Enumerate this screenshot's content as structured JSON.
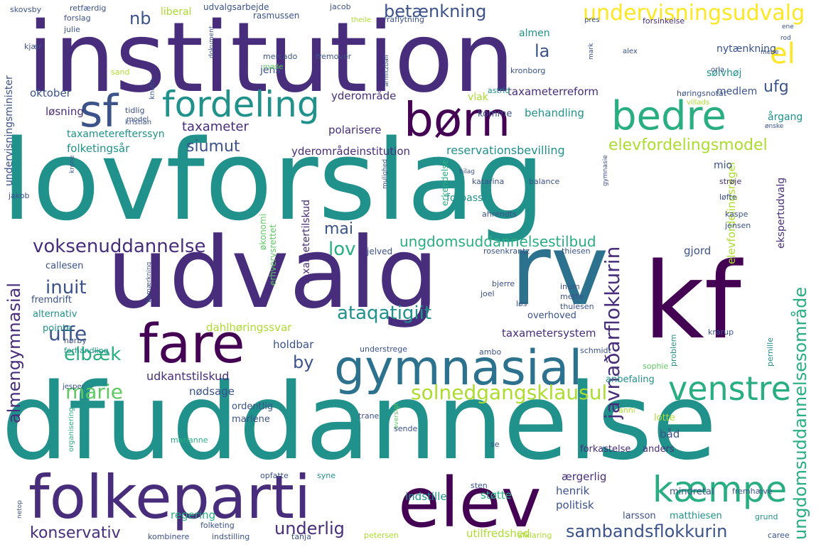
{
  "words": {
    "institution": "institution",
    "lovforslag": "lovforslag",
    "udvalg": "udvalg",
    "rv": "rv",
    "kf": "kf",
    "dfuddannelse": "dfuddannelse",
    "folkeparti": "folkeparti",
    "elev": "elev",
    "fare": "fare",
    "gymnasial": "gymnasial",
    "sf": "sf",
    "fordeling": "fordeling",
    "born": "børn",
    "bedre": "bedre",
    "el": "el",
    "kaempe": "kæmpe",
    "venstre": "venstre",
    "undervisningsudvalg": "undervisningsudvalg",
    "betaenkning": "betænkning",
    "elevfordelingsmodel": "elevfordelingsmodel",
    "solnedgangsklausul": "solnedgangsklausul",
    "ungdomsuddannelsestilbud": "ungdomsuddannelsestilbud",
    "voksenuddannelse": "voksenuddannelse",
    "javnadarflokkurin": "javnaðarflokkurin",
    "ungdomsuddannelsesomrade": "ungdomsuddannelsesområde",
    "sambandsflokkurin": "sambandsflokkurin",
    "konservativ": "konservativ",
    "underlig": "underlig",
    "almengymnasial": "almengymnasial",
    "ataqatigiit": "ataqatigiit",
    "uffe": "uffe",
    "elbaek": "elbæk",
    "marie": "marie",
    "inuit": "inuit",
    "lov": "lov",
    "mai": "mai",
    "by": "by",
    "nb": "nb",
    "la": "la",
    "siumut": "siumut",
    "taxameter": "taxameter",
    "ufg": "ufg",
    "behandling": "behandling",
    "reservationsbevilling": "reservationsbevilling",
    "yderomradeinstitution": "yderområdeinstitution",
    "taxameterreform": "taxameterreform",
    "taxameterefterssyn": "taxameterefterssyn",
    "folketingsar": "folketingsår",
    "polarisere": "polarisere",
    "yderomrade": "yderområde",
    "losning": "løsning",
    "oktober": "oktober",
    "undervisningsminister": "undervisningsminister",
    "taxametertilskud": "taxametertilskud",
    "udkantstilskud": "udkantstilskud",
    "taxametersystem": "taxametersystem",
    "dahlhoringssvar": "dahlhøringssvar",
    "holdbar": "holdbar",
    "nodsage": "nødsage",
    "ordentlig": "ordentlig",
    "marlene": "marlene",
    "indstille": "indstille",
    "henrik": "henrik",
    "politisk": "politisk",
    "regering": "regering",
    "utilfredshed": "utilfredshed",
    "stotte": "støtte",
    "aergerlig": "ærgerlig",
    "forkastelse": "forkastelse",
    "anders": "anders",
    "bad": "båd",
    "lotte": "lotte",
    "sophie": "sophie",
    "anbefaling": "anbefaling",
    "schmidt": "schmidt",
    "krarup": "krarup",
    "problem": "problem",
    "pernille": "pernille",
    "mindretal": "mindretal",
    "fremhaeve": "fremhæve",
    "larsson": "larsson",
    "matthiesen": "matthiesen",
    "grund": "grund",
    "caree": "caree",
    "ekspertudvalg": "ekspertudvalg",
    "elevfordelingsregel": "elevfordelingsregel",
    "gjord": "gjord",
    "thiesen": "thiesen",
    "rosenkrantz": "rosenkrantz",
    "kaspe": "kaspe",
    "jensen": "jensen",
    "ahrendts": "ahrendts",
    "forpasse": "forpasse",
    "katarina": "katarina",
    "balance": "balance",
    "streje": "strøje",
    "lofte": "løfte",
    "mio": "mio",
    "okonomi": "økonomi",
    "erhvervsrettet": "erhvervsrettet",
    "jelved": "jelved",
    "callesen": "callesen",
    "fremdrift": "fremdrift",
    "alternativ": "alternativ",
    "pointe": "pointe",
    "norby": "nørby",
    "forhandling": "forhandling",
    "jesper": "jesper",
    "erkendelse": "erkendelse",
    "jens": "jens",
    "solvhoj": "sølvhøj",
    "medlem": "medlem",
    "argang": "årgang",
    "nytaenkning": "nytænkning",
    "almen": "almen",
    "liberal": "liberal",
    "udvalgsarbejde": "udvalgsarbejde",
    "rasmussen": "rasmussen",
    "jacob": "jacob",
    "theile": "theile",
    "fraflytning": "fraflytning",
    "forsinkelse": "forsinkelse",
    "fremover": "fremover",
    "mercado": "mercado",
    "mode": "møde",
    "kronborg": "kronborg",
    "astrid": "astrid",
    "horingsnotat": "høringsnotat",
    "villads": "villads",
    "orla": "orla",
    "alex": "alex",
    "mark": "mark",
    "skovsby": "skovsby",
    "forslag": "forslag",
    "retfaerdig": "retfærdig",
    "julie": "julie",
    "kjaer": "kjær",
    "sand": "sand",
    "tidlig": "tidlig",
    "model": "model",
    "kristian": "kristian",
    "knuth": "knuth",
    "dokument": "dokument",
    "armitzball": "armitzball",
    "vlak": "vlak",
    "komme": "komme",
    "pres": "pres",
    "onske": "ønske",
    "ene": "ene",
    "jakob": "jakob",
    "krone": "krone",
    "mulighed": "mulighed",
    "bilag": "bilag",
    "gymnasie": "gymnasie",
    "joel": "joel",
    "bjerre": "bjerre",
    "inum": "inum",
    "mette": "mette",
    "thulesen": "thulesen",
    "los": "løs",
    "overhoved": "overhoved",
    "understrege": "understrege",
    "ambo": "ambo",
    "bemaerkning": "bemærkning",
    "trane": "trane",
    "oversigt": "oversigt",
    "anni": "anni",
    "sende": "sende",
    "se": "se",
    "marianne": "marianne",
    "organisering": "organisering",
    "opfatte": "opfatte",
    "syne": "syne",
    "sten": "sten",
    "netop": "netop",
    "folketing": "folketing",
    "kombinere": "kombinere",
    "indstilling": "indstilling",
    "tanja": "tanja",
    "petersen": "petersen",
    "afklaring": "afklaring",
    "rod": "rod",
    "mene": "mene"
  }
}
